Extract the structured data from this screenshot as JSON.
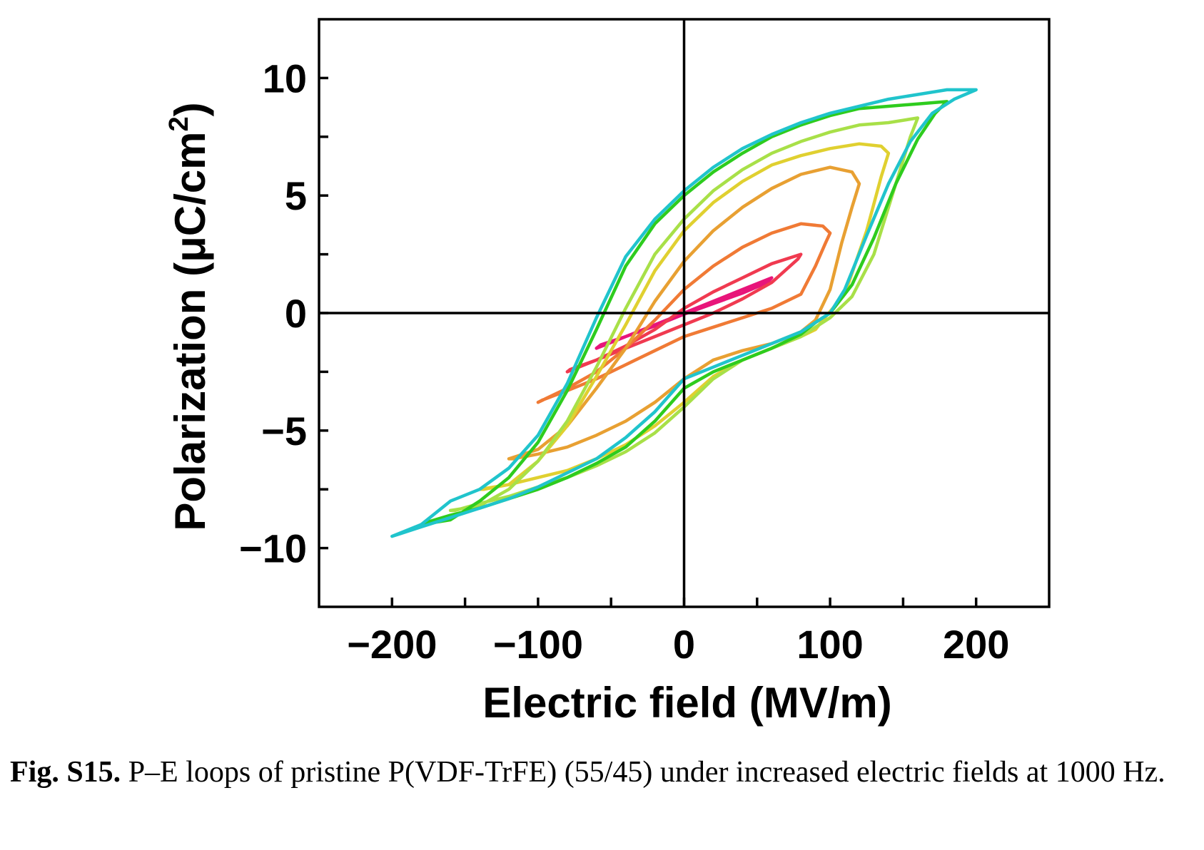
{
  "caption": {
    "label": "Fig. S15.",
    "text": "P–E loops of pristine P(VDF-TrFE) (55/45) under increased electric fields at 1000 Hz."
  },
  "chart_data": {
    "type": "line",
    "title": "",
    "xlabel": "Electric field (MV/m)",
    "ylabel_main": "Polarization (μC/cm",
    "ylabel_sup": "2",
    "ylabel_end": ")",
    "xlim": [
      -250,
      250
    ],
    "ylim": [
      -12.5,
      12.5
    ],
    "xticks": [
      -200,
      -100,
      0,
      100,
      200
    ],
    "xtick_labels": [
      "−200",
      "−100",
      "0",
      "100",
      "200"
    ],
    "yticks": [
      -10,
      -5,
      0,
      5,
      10
    ],
    "ytick_labels": [
      "−10",
      "−5",
      "0",
      "5",
      "10"
    ],
    "zero_lines": true,
    "grid": false,
    "legend": "none",
    "series": [
      {
        "color": "#e8157a",
        "x": [
          -60,
          -40,
          -20,
          0,
          20,
          40,
          60,
          57,
          40,
          20,
          0,
          -20,
          -40,
          -57,
          -60
        ],
        "y": [
          -1.5,
          -1.0,
          -0.5,
          0.0,
          0.5,
          1.0,
          1.5,
          1.3,
          0.85,
          0.4,
          -0.05,
          -0.55,
          -1.0,
          -1.35,
          -1.5
        ]
      },
      {
        "color": "#f03a50",
        "x": [
          -80,
          -60,
          -40,
          -20,
          0,
          20,
          40,
          60,
          80,
          78,
          60,
          40,
          20,
          0,
          -20,
          -40,
          -60,
          -78,
          -80
        ],
        "y": [
          -2.5,
          -2.0,
          -1.4,
          -0.7,
          0.2,
          0.9,
          1.5,
          2.1,
          2.5,
          2.3,
          1.3,
          0.6,
          0.0,
          -0.5,
          -1.0,
          -1.5,
          -2.0,
          -2.4,
          -2.5
        ]
      },
      {
        "color": "#f07a35",
        "x": [
          -100,
          -80,
          -60,
          -40,
          -20,
          0,
          20,
          40,
          60,
          80,
          95,
          100,
          97,
          90,
          80,
          60,
          40,
          20,
          0,
          -20,
          -40,
          -60,
          -80,
          -97,
          -100
        ],
        "y": [
          -3.8,
          -3.2,
          -2.5,
          -1.5,
          -0.3,
          1.0,
          2.0,
          2.8,
          3.4,
          3.8,
          3.7,
          3.4,
          3.0,
          2.0,
          0.8,
          0.2,
          -0.2,
          -0.6,
          -1.0,
          -1.6,
          -2.2,
          -2.8,
          -3.3,
          -3.7,
          -3.8
        ]
      },
      {
        "color": "#e8a032",
        "x": [
          -120,
          -100,
          -80,
          -60,
          -40,
          -20,
          0,
          20,
          40,
          60,
          80,
          100,
          115,
          120,
          115,
          108,
          100,
          90,
          80,
          60,
          40,
          20,
          0,
          -20,
          -40,
          -60,
          -80,
          -100,
          -117,
          -120
        ],
        "y": [
          -6.2,
          -5.8,
          -4.8,
          -3.2,
          -1.5,
          0.5,
          2.2,
          3.5,
          4.5,
          5.3,
          5.9,
          6.2,
          6.0,
          5.5,
          4.5,
          3.0,
          1.0,
          -0.3,
          -0.8,
          -1.3,
          -1.6,
          -2.0,
          -2.8,
          -3.8,
          -4.6,
          -5.2,
          -5.7,
          -6.0,
          -6.2,
          -6.2
        ]
      },
      {
        "color": "#e0d030",
        "x": [
          -140,
          -120,
          -100,
          -80,
          -60,
          -40,
          -20,
          0,
          20,
          40,
          60,
          80,
          100,
          120,
          135,
          140,
          135,
          125,
          110,
          95,
          90,
          80,
          60,
          40,
          20,
          0,
          -20,
          -40,
          -60,
          -80,
          -100,
          -120,
          -137,
          -140
        ],
        "y": [
          -7.5,
          -7.3,
          -6.3,
          -4.8,
          -2.7,
          -0.5,
          1.8,
          3.5,
          4.7,
          5.6,
          6.3,
          6.7,
          7.0,
          7.2,
          7.1,
          6.8,
          5.8,
          3.5,
          0.8,
          -0.3,
          -0.7,
          -1.0,
          -1.5,
          -2.0,
          -2.7,
          -3.8,
          -4.8,
          -5.6,
          -6.2,
          -6.7,
          -7.0,
          -7.3,
          -7.5,
          -7.5
        ]
      },
      {
        "color": "#a8e048",
        "x": [
          -160,
          -140,
          -120,
          -100,
          -80,
          -60,
          -40,
          -20,
          0,
          20,
          40,
          60,
          80,
          100,
          120,
          140,
          160,
          155,
          145,
          130,
          115,
          100,
          90,
          80,
          60,
          40,
          20,
          0,
          -20,
          -40,
          -60,
          -80,
          -100,
          -120,
          -140,
          -157,
          -160
        ],
        "y": [
          -8.4,
          -8.2,
          -7.5,
          -6.3,
          -4.6,
          -2.3,
          0.2,
          2.5,
          4.0,
          5.2,
          6.1,
          6.8,
          7.3,
          7.7,
          8.0,
          8.1,
          8.3,
          7.5,
          5.5,
          2.5,
          0.7,
          -0.2,
          -0.6,
          -1.0,
          -1.5,
          -2.0,
          -2.8,
          -4.0,
          -5.1,
          -5.9,
          -6.5,
          -7.0,
          -7.4,
          -7.8,
          -8.1,
          -8.4,
          -8.4
        ]
      },
      {
        "color": "#2ecc1e",
        "x": [
          -180,
          -160,
          -140,
          -120,
          -100,
          -80,
          -60,
          -40,
          -20,
          0,
          20,
          40,
          60,
          80,
          100,
          120,
          140,
          160,
          180,
          172,
          160,
          145,
          130,
          115,
          100,
          90,
          80,
          60,
          40,
          20,
          0,
          -20,
          -40,
          -60,
          -80,
          -100,
          -120,
          -140,
          -160,
          -176,
          -180
        ],
        "y": [
          -9.0,
          -8.8,
          -8.0,
          -7.0,
          -5.5,
          -3.3,
          -0.7,
          2.0,
          3.8,
          5.0,
          6.0,
          6.8,
          7.5,
          8.0,
          8.4,
          8.7,
          8.8,
          8.9,
          9.0,
          8.5,
          7.4,
          5.5,
          3.2,
          1.2,
          0.0,
          -0.4,
          -0.9,
          -1.5,
          -2.0,
          -2.5,
          -3.2,
          -4.6,
          -5.7,
          -6.4,
          -7.0,
          -7.5,
          -7.9,
          -8.3,
          -8.6,
          -8.9,
          -9.0
        ]
      },
      {
        "color": "#20c4cc",
        "x": [
          -200,
          -180,
          -160,
          -140,
          -120,
          -100,
          -80,
          -60,
          -40,
          -20,
          0,
          20,
          40,
          60,
          80,
          100,
          120,
          140,
          160,
          180,
          200,
          185,
          170,
          155,
          140,
          125,
          110,
          100,
          90,
          80,
          60,
          40,
          20,
          0,
          -20,
          -40,
          -60,
          -80,
          -100,
          -120,
          -140,
          -160,
          -180,
          -195,
          -200
        ],
        "y": [
          -9.5,
          -9.0,
          -8.0,
          -7.5,
          -6.6,
          -5.2,
          -3.0,
          -0.2,
          2.4,
          4.0,
          5.2,
          6.2,
          7.0,
          7.6,
          8.1,
          8.5,
          8.8,
          9.1,
          9.3,
          9.5,
          9.5,
          9.1,
          8.5,
          7.3,
          5.5,
          3.3,
          1.0,
          0.0,
          -0.4,
          -0.8,
          -1.3,
          -1.8,
          -2.3,
          -2.8,
          -4.2,
          -5.3,
          -6.2,
          -6.8,
          -7.4,
          -7.9,
          -8.3,
          -8.7,
          -9.1,
          -9.4,
          -9.5
        ]
      }
    ]
  }
}
